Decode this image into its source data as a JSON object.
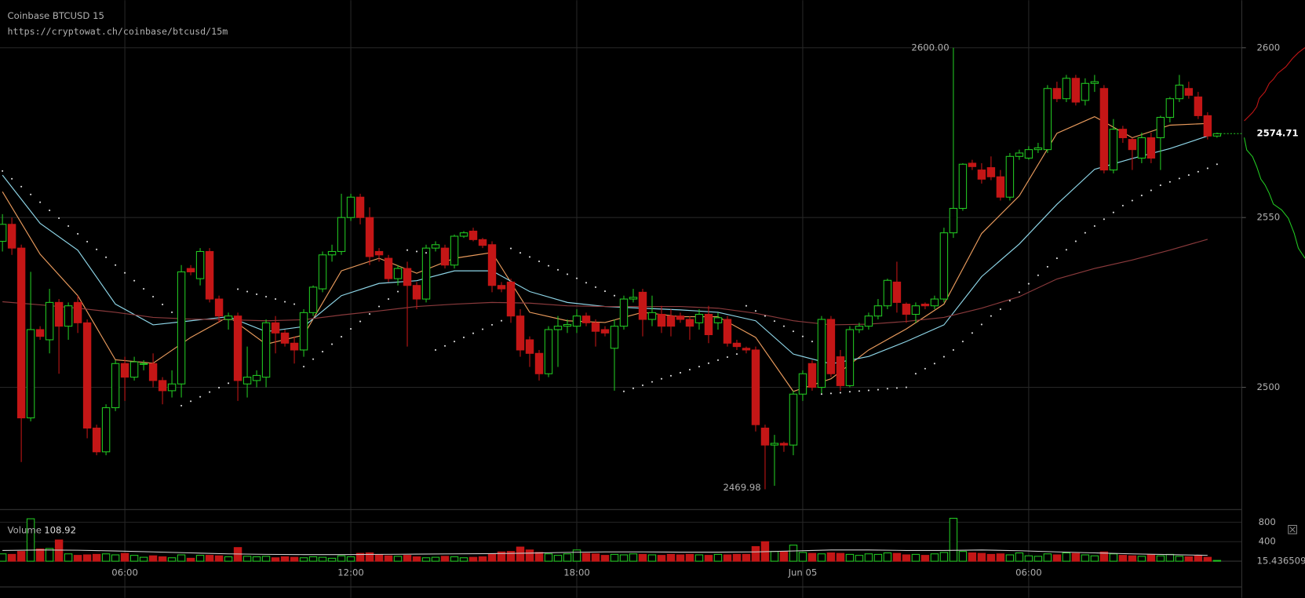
{
  "chart_data": {
    "type": "candlestick",
    "title": "Coinbase BTCUSD 15",
    "subtitle": "https://cryptowat.ch/coinbase/btcusd/15m",
    "up_color": "#22c822",
    "down_color": "#c41616",
    "x": [
      2.75,
      3,
      3.25,
      3.5,
      3.75,
      4,
      4.25,
      4.5,
      4.75,
      5,
      5.25,
      5.5,
      5.75,
      6,
      6.25,
      6.5,
      6.75,
      7,
      7.25,
      7.5,
      7.75,
      8,
      8.25,
      8.5,
      8.75,
      9,
      9.25,
      9.5,
      9.75,
      10,
      10.25,
      10.5,
      10.75,
      11,
      11.25,
      11.5,
      11.75,
      12,
      12.25,
      12.5,
      12.75,
      13,
      13.25,
      13.5,
      13.75,
      14,
      14.25,
      14.5,
      14.75,
      15,
      15.25,
      15.5,
      15.75,
      16,
      16.25,
      16.5,
      16.75,
      17,
      17.25,
      17.5,
      17.75,
      18,
      18.25,
      18.5,
      18.75,
      19,
      19.25,
      19.5,
      19.75,
      20,
      20.25,
      20.5,
      20.75,
      21,
      21.25,
      21.5,
      21.75,
      22,
      22.25,
      22.5,
      22.75,
      23,
      23.25,
      23.5,
      23.75,
      24,
      24.25,
      24.5,
      24.75,
      25,
      25.25,
      25.5,
      25.75,
      26,
      26.25,
      26.5,
      26.75,
      27,
      27.25,
      27.5,
      27.75,
      28,
      28.25,
      28.5,
      28.75,
      29,
      29.25,
      29.5,
      29.75,
      30,
      30.25,
      30.5,
      30.75,
      31,
      31.25,
      31.5,
      31.75,
      32,
      32.25,
      32.5,
      32.75,
      33,
      33.25,
      33.5,
      33.75,
      34,
      34.25,
      34.5,
      34.75,
      35
    ],
    "open": [
      2543,
      2548,
      2541,
      2491,
      2517,
      2514,
      2525,
      2518,
      2525,
      2519,
      2488,
      2481,
      2494,
      2507,
      2503,
      2507,
      2507,
      2502,
      2499,
      2501,
      2535,
      2532,
      2540,
      2526,
      2520,
      2521,
      2501,
      2502,
      2503,
      2519,
      2516,
      2513,
      2511,
      2522,
      2529,
      2539,
      2540,
      2550,
      2556,
      2550,
      2540,
      2538,
      2532,
      2535,
      2530,
      2526,
      2541,
      2541,
      2536,
      2544.5,
      2546,
      2543.5,
      2542,
      2530,
      2531,
      2521,
      2514,
      2510,
      2504,
      2517,
      2518,
      2518,
      2521,
      2519,
      2517,
      2511.5,
      2518,
      2526,
      2528,
      2520,
      2521.5,
      2521,
      2521,
      2520,
      2519,
      2521.5,
      2519,
      2520,
      2513,
      2511.5,
      2511,
      2488,
      2483,
      2483.5,
      2483,
      2498,
      2507,
      2500,
      2520,
      2509,
      2500.5,
      2517,
      2518,
      2521,
      2524,
      2531,
      2524.5,
      2521.5,
      2524.5,
      2524,
      2526,
      2545.5,
      2552.7,
      2566,
      2564,
      2564.7,
      2562,
      2556,
      2568,
      2567.5,
      2570,
      2570,
      2588,
      2585,
      2591,
      2584.5,
      2589.5,
      2588,
      2564,
      2576,
      2573,
      2567.5,
      2573.5,
      2573.5,
      2579.5,
      2585,
      2588,
      2585.5,
      2580,
      2574
    ],
    "high": [
      2551,
      2550,
      2542,
      2534,
      2518,
      2529,
      2526,
      2525,
      2527,
      2520,
      2489,
      2495,
      2508,
      2509,
      2509,
      2508,
      2510,
      2503,
      2505,
      2536,
      2536,
      2541,
      2541,
      2527,
      2522,
      2522,
      2512,
      2505,
      2520,
      2521,
      2517,
      2515,
      2523,
      2530,
      2540,
      2542,
      2557,
      2557,
      2557,
      2553,
      2541,
      2539,
      2536,
      2537,
      2531,
      2542,
      2543,
      2542,
      2545,
      2546,
      2547,
      2544,
      2543,
      2531,
      2532,
      2523,
      2515,
      2511,
      2518,
      2521,
      2520,
      2523,
      2522,
      2520,
      2518,
      2520,
      2527,
      2529,
      2529,
      2527,
      2524,
      2523,
      2522,
      2521,
      2523,
      2524,
      2522,
      2521,
      2514,
      2512,
      2512,
      2489,
      2486,
      2484,
      2499,
      2505,
      2508,
      2521,
      2521,
      2511,
      2518,
      2519,
      2522,
      2526,
      2532,
      2537,
      2525,
      2525,
      2525,
      2527,
      2547,
      2600,
      2566,
      2567,
      2566,
      2568,
      2564,
      2569,
      2570,
      2571,
      2572,
      2589,
      2590,
      2592,
      2592,
      2591,
      2592,
      2589,
      2579,
      2577,
      2573.5,
      2575,
      2575,
      2580,
      2585.5,
      2592,
      2590,
      2587,
      2581,
      2575
    ],
    "low": [
      2540,
      2539,
      2478,
      2490,
      2514,
      2510,
      2504,
      2514,
      2516,
      2485,
      2480,
      2480,
      2493,
      2496,
      2502,
      2505,
      2500,
      2495,
      2497,
      2497,
      2533,
      2530,
      2525,
      2519,
      2517,
      2496,
      2497,
      2500,
      2500,
      2510,
      2512,
      2507,
      2509,
      2521,
      2528,
      2537,
      2539,
      2549,
      2548,
      2536,
      2537,
      2531,
      2530,
      2512,
      2523,
      2525,
      2540,
      2535,
      2535,
      2544,
      2543,
      2541,
      2528,
      2528,
      2519,
      2509,
      2506,
      2502,
      2503,
      2506,
      2516,
      2516,
      2518,
      2512,
      2515,
      2499,
      2517,
      2525,
      2515,
      2518,
      2516,
      2515,
      2519,
      2514,
      2517,
      2513,
      2517,
      2512,
      2511,
      2510,
      2487,
      2469.98,
      2471,
      2481,
      2480,
      2496,
      2499,
      2498,
      2503,
      2499,
      2500,
      2516,
      2517,
      2520,
      2523,
      2522,
      2519,
      2519,
      2523,
      2523,
      2525,
      2544,
      2552,
      2564,
      2560,
      2561,
      2555,
      2555,
      2567,
      2567,
      2569,
      2569,
      2584,
      2584,
      2583,
      2583,
      2587,
      2563,
      2563,
      2572,
      2564,
      2566,
      2566,
      2564,
      2578,
      2584,
      2585,
      2579,
      2573,
      2573.5
    ],
    "close": [
      2548,
      2541,
      2491,
      2517,
      2515,
      2525,
      2518,
      2524,
      2519,
      2488,
      2481,
      2494,
      2507,
      2503,
      2507.5,
      2507,
      2502,
      2499,
      2501,
      2534,
      2534,
      2540,
      2526,
      2521,
      2521,
      2502,
      2503,
      2503.5,
      2519,
      2516,
      2513,
      2511,
      2522,
      2529.5,
      2539,
      2540,
      2550,
      2556,
      2550,
      2538.5,
      2539,
      2532,
      2535,
      2530,
      2526,
      2541,
      2542,
      2536,
      2544.5,
      2545.5,
      2543.5,
      2541.8,
      2530,
      2529,
      2521,
      2511,
      2510,
      2504,
      2517,
      2518,
      2518.5,
      2521,
      2519,
      2516.5,
      2516,
      2518,
      2526,
      2526.5,
      2520,
      2522,
      2518,
      2518,
      2520,
      2518,
      2521.5,
      2515.5,
      2520.5,
      2513,
      2512,
      2511,
      2489,
      2483,
      2483.5,
      2483,
      2498,
      2504,
      2500,
      2520,
      2504,
      2500.5,
      2517,
      2518,
      2521,
      2524,
      2531.5,
      2525,
      2521.5,
      2524,
      2524,
      2526,
      2545.5,
      2552.7,
      2565.7,
      2565,
      2561.3,
      2562,
      2556,
      2568,
      2569,
      2570,
      2570.5,
      2588,
      2585,
      2591,
      2584,
      2589.5,
      2590,
      2564,
      2576,
      2573.5,
      2570,
      2573.5,
      2567.5,
      2579.5,
      2585,
      2589,
      2586,
      2580,
      2574,
      2574.71
    ],
    "xlim": [
      2.685,
      35.657
    ],
    "xticks": [
      {
        "value": 6,
        "label": "06:00"
      },
      {
        "value": 12,
        "label": "12:00"
      },
      {
        "value": 18,
        "label": "18:00"
      },
      {
        "value": 24,
        "label": "Jun 05"
      },
      {
        "value": 30,
        "label": "06:00"
      }
    ],
    "ylim": [
      2464,
      2614
    ],
    "yticks": [
      2500,
      2550,
      2600
    ],
    "grid": true,
    "annotations": [
      {
        "x": 28,
        "value": 2600,
        "label": "2600.00"
      },
      {
        "x": 23,
        "value": 2469.98,
        "label": "2469.98"
      }
    ],
    "lines": [
      {
        "color": "#e89a5c",
        "x": [
          2.75,
          3.75,
          4.75,
          5.75,
          6.75,
          7.75,
          8.75,
          9.75,
          10.75,
          11.75,
          12.75,
          13.75,
          14.75,
          15.75,
          16.75,
          17.75,
          18.75,
          19.75,
          20.75,
          21.75,
          22.75,
          23.75,
          24.75,
          25.75,
          26.75,
          27.75,
          28.75,
          29.75,
          30.75,
          31.75,
          32.75,
          33.75,
          34.75
        ],
        "values": [
          2557.6,
          2539.2,
          2527.0,
          2508.1,
          2507.1,
          2514.7,
          2520.8,
          2512.7,
          2515.4,
          2534.3,
          2538.0,
          2533.6,
          2538.0,
          2539.7,
          2522.1,
          2519.6,
          2519.1,
          2522.1,
          2520.8,
          2520.8,
          2514.7,
          2498.8,
          2502.5,
          2511.0,
          2517.2,
          2524.5,
          2545.3,
          2556.4,
          2574.8,
          2579.7,
          2573.5,
          2577.2,
          2577.7
        ]
      },
      {
        "color": "#8ed6e8",
        "x": [
          2.75,
          3.75,
          4.75,
          5.75,
          6.75,
          7.75,
          8.75,
          9.75,
          10.75,
          11.75,
          12.75,
          13.75,
          14.75,
          15.75,
          16.75,
          17.75,
          18.75,
          19.75,
          20.75,
          21.75,
          22.75,
          23.75,
          24.75,
          25.75,
          26.75,
          27.75,
          28.75,
          29.75,
          30.75,
          31.75,
          32.75,
          33.75,
          34.75
        ],
        "values": [
          2562.5,
          2548.3,
          2540.4,
          2524.5,
          2518.4,
          2519.6,
          2520.8,
          2516.4,
          2517.9,
          2527.0,
          2530.6,
          2531.4,
          2534.3,
          2534.3,
          2528.2,
          2525.0,
          2523.8,
          2523.3,
          2522.8,
          2522.1,
          2519.6,
          2509.8,
          2506.9,
          2509.1,
          2513.5,
          2518.4,
          2532.6,
          2542.2,
          2553.9,
          2564.2,
          2567.4,
          2570.3,
          2574.0
        ]
      },
      {
        "color": "#8a3a3c",
        "x": [
          2.75,
          3.75,
          4.75,
          5.75,
          6.75,
          7.75,
          8.75,
          9.75,
          10.75,
          11.75,
          12.75,
          13.75,
          14.75,
          15.75,
          16.75,
          17.75,
          18.75,
          19.75,
          20.75,
          21.75,
          22.75,
          23.75,
          24.75,
          25.75,
          26.75,
          27.75,
          28.75,
          29.75,
          30.75,
          31.75,
          32.75,
          33.75,
          34.75
        ],
        "values": [
          2525.2,
          2524.3,
          2523.3,
          2522.1,
          2520.6,
          2520.1,
          2519.9,
          2519.6,
          2519.9,
          2521.3,
          2522.5,
          2523.8,
          2524.5,
          2525.0,
          2524.8,
          2524.0,
          2523.8,
          2523.8,
          2523.8,
          2523.3,
          2521.8,
          2519.6,
          2518.4,
          2518.6,
          2519.4,
          2520.6,
          2523.3,
          2526.7,
          2531.9,
          2535.0,
          2537.5,
          2540.4,
          2543.6
        ]
      }
    ],
    "dots": {
      "color": "#dddddd",
      "values": [
        2563.7,
        2561.4,
        2559.1,
        2556.8,
        2554.5,
        2552.1,
        2549.8,
        2547.5,
        2545.2,
        2542.9,
        2540.6,
        2538.3,
        2536.0,
        2533.7,
        2531.4,
        2529.0,
        2526.7,
        2524.4,
        2522.1,
        2494.6,
        2495.9,
        2497.2,
        2498.6,
        2499.9,
        2501.2,
        2528.9,
        2528.2,
        2527.4,
        2526.7,
        2526.0,
        2525.2,
        2524.5,
        2506.1,
        2508.3,
        2510.5,
        2512.7,
        2514.9,
        2517.2,
        2519.4,
        2521.6,
        2523.8,
        2526.0,
        2528.2,
        2540.4,
        2540.0,
        2539.6,
        2511.0,
        2512.2,
        2513.5,
        2514.7,
        2515.9,
        2517.1,
        2518.4,
        2519.6,
        2540.9,
        2539.6,
        2538.4,
        2537.1,
        2535.8,
        2534.6,
        2533.3,
        2532.1,
        2530.8,
        2529.5,
        2528.3,
        2527.0,
        2498.8,
        2499.7,
        2500.6,
        2501.6,
        2502.5,
        2503.4,
        2504.3,
        2505.2,
        2506.1,
        2507.1,
        2508.0,
        2508.9,
        2509.8,
        2524.0,
        2522.5,
        2521.0,
        2519.5,
        2518.0,
        2516.5,
        2515.0,
        2513.5,
        2498.0,
        2498.2,
        2498.4,
        2498.7,
        2498.9,
        2499.1,
        2499.3,
        2499.6,
        2499.8,
        2500.0,
        2504,
        2505.5,
        2507,
        2509,
        2511,
        2513.5,
        2516,
        2518.5,
        2521,
        2523,
        2525.5,
        2528,
        2530.5,
        2533,
        2535.5,
        2538,
        2540.5,
        2543,
        2545.5,
        2547.5,
        2549.5,
        2551.5,
        2553.5,
        2555,
        2556.5,
        2558,
        2559.5,
        2560.5,
        2561.5,
        2562.5,
        2563.5,
        2564.5,
        2565.7
      ]
    },
    "volume": {
      "title": "Volume",
      "current": 108.92,
      "axis_label": 15.436509,
      "ylim": [
        0,
        922
      ],
      "yticks": [
        400,
        800
      ],
      "values": [
        150,
        140,
        200,
        870,
        250,
        260,
        435,
        150,
        120,
        130,
        140,
        150,
        130,
        160,
        120,
        80,
        110,
        90,
        70,
        130,
        60,
        120,
        120,
        110,
        90,
        280,
        100,
        90,
        100,
        70,
        90,
        80,
        70,
        90,
        80,
        60,
        110,
        90,
        160,
        170,
        130,
        110,
        100,
        120,
        90,
        70,
        80,
        100,
        90,
        70,
        80,
        90,
        150,
        190,
        200,
        290,
        230,
        180,
        150,
        120,
        150,
        230,
        160,
        150,
        120,
        140,
        130,
        150,
        140,
        130,
        120,
        140,
        130,
        140,
        130,
        120,
        140,
        130,
        140,
        140,
        300,
        400,
        200,
        200,
        330,
        180,
        160,
        150,
        170,
        160,
        140,
        120,
        150,
        140,
        170,
        160,
        130,
        140,
        120,
        150,
        180,
        880,
        200,
        170,
        160,
        140,
        150,
        130,
        170,
        110,
        100,
        150,
        130,
        170,
        160,
        130,
        110,
        190,
        150,
        120,
        110,
        100,
        130,
        110,
        140,
        100,
        90,
        110,
        80,
        15.436509
      ],
      "ma": {
        "color": "#cfcfcf",
        "x": [
          2.75,
          3.75,
          4.75,
          5.75,
          6.75,
          7.75,
          8.75,
          9.75,
          10.75,
          11.75,
          12.75,
          13.75,
          14.75,
          15.75,
          16.75,
          17.75,
          18.75,
          19.75,
          20.75,
          21.75,
          22.75,
          23.75,
          24.75,
          25.75,
          26.75,
          27.75,
          28.75,
          29.75,
          30.75,
          31.75,
          32.75,
          33.75,
          34.75
        ],
        "values": [
          220,
          230,
          225,
          210,
          190,
          170,
          150,
          140,
          135,
          135,
          140,
          145,
          150,
          155,
          165,
          180,
          190,
          190,
          185,
          185,
          190,
          210,
          230,
          230,
          220,
          220,
          230,
          215,
          190,
          170,
          150,
          135,
          120
        ]
      }
    }
  }
}
